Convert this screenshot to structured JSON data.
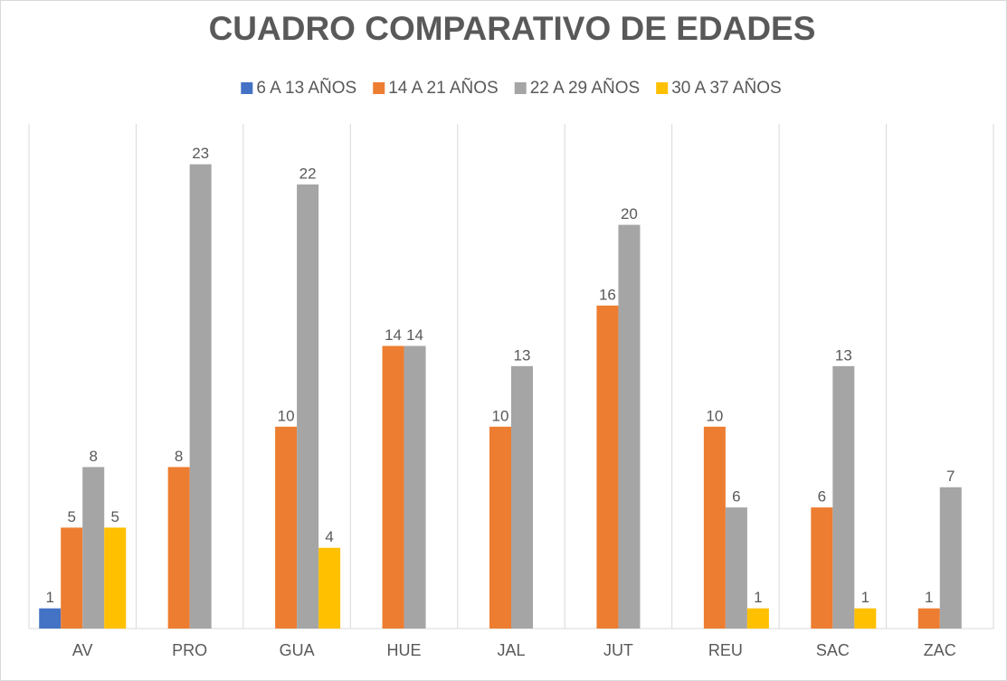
{
  "chart_data": {
    "type": "bar",
    "title": "CUADRO COMPARATIVO DE EDADES",
    "categories": [
      "AV",
      "PRO",
      "GUA",
      "HUE",
      "JAL",
      "JUT",
      "REU",
      "SAC",
      "ZAC"
    ],
    "series": [
      {
        "name": "6 A 13 AÑOS",
        "color": "#4472c4",
        "values": [
          1,
          null,
          null,
          null,
          null,
          null,
          null,
          null,
          null
        ]
      },
      {
        "name": "14 A 21 AÑOS",
        "color": "#ed7d31",
        "values": [
          5,
          8,
          10,
          14,
          10,
          16,
          10,
          6,
          1
        ]
      },
      {
        "name": "22 A 29 AÑOS",
        "color": "#a5a5a5",
        "values": [
          8,
          23,
          22,
          14,
          13,
          20,
          6,
          13,
          7
        ]
      },
      {
        "name": "30 A 37 AÑOS",
        "color": "#ffc000",
        "values": [
          5,
          null,
          4,
          null,
          null,
          null,
          1,
          1,
          null
        ]
      }
    ],
    "ylim": [
      0,
      25
    ],
    "legend": "top"
  }
}
